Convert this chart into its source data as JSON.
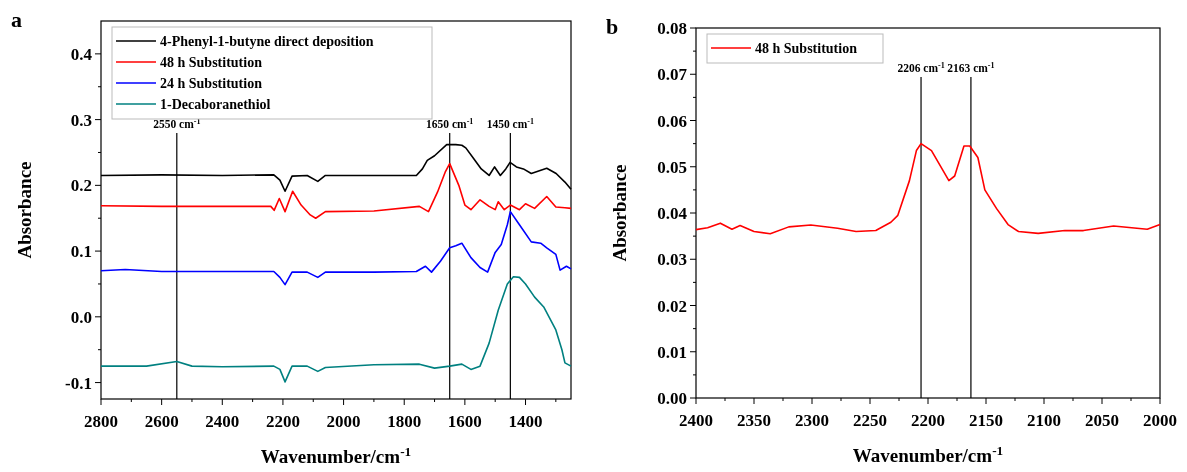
{
  "chart_data": [
    {
      "type": "line",
      "title": "a",
      "xlabel": "Wavenumber/cm$^{-1}$",
      "ylabel": "Absorbance",
      "xlim": [
        2800,
        1250
      ],
      "xticks": [
        2800,
        {
          "value": 2700,
          "label": null
        },
        2600,
        {
          "value": 2500,
          "label": null
        },
        2400,
        {
          "value": 2300,
          "label": null
        },
        2200,
        {
          "value": 2100,
          "label": null
        },
        2000,
        {
          "value": 1900,
          "label": null
        },
        1800,
        {
          "value": 1700,
          "label": null
        },
        1600,
        {
          "value": 1500,
          "label": null
        },
        1400,
        {
          "value": 1300,
          "label": null
        }
      ],
      "ylim": [
        -0.125,
        0.45
      ],
      "yticks": [
        {
          "value": -0.1,
          "label": "-0.1"
        },
        {
          "value": -0.05,
          "label": null
        },
        {
          "value": 0,
          "label": "0.0"
        },
        {
          "value": 0.05,
          "label": null
        },
        0.1,
        {
          "value": 0.15,
          "label": null
        },
        0.2,
        {
          "value": 0.25,
          "label": null
        },
        0.3,
        {
          "value": 0.35,
          "label": null
        },
        0.4
      ],
      "legend": "top left",
      "grid": false,
      "marker": "none",
      "line_style": "solid",
      "series": [
        {
          "name": "4-Phenyl-1-butyne direct deposition",
          "color": "#000000",
          "x": [
            2800,
            2600,
            2400,
            2230,
            2210,
            2193,
            2170,
            2120,
            2085,
            2060,
            1900,
            1760,
            1740,
            1724,
            1700,
            1660,
            1630,
            1610,
            1597,
            1570,
            1546,
            1520,
            1502,
            1483,
            1465,
            1451,
            1430,
            1407,
            1381,
            1330,
            1299,
            1270,
            1250
          ],
          "values": [
            0.215,
            0.216,
            0.215,
            0.216,
            0.208,
            0.191,
            0.214,
            0.215,
            0.206,
            0.215,
            0.215,
            0.215,
            0.225,
            0.238,
            0.245,
            0.262,
            0.262,
            0.261,
            0.257,
            0.24,
            0.225,
            0.215,
            0.228,
            0.215,
            0.225,
            0.235,
            0.228,
            0.225,
            0.218,
            0.226,
            0.218,
            0.205,
            0.194
          ]
        },
        {
          "name": "48 h Substitution",
          "color": "#ff0000",
          "x": [
            2800,
            2600,
            2400,
            2240,
            2229,
            2212,
            2193,
            2168,
            2140,
            2110,
            2092,
            2060,
            1900,
            1750,
            1720,
            1690,
            1665,
            1650,
            1620,
            1600,
            1580,
            1550,
            1520,
            1500,
            1490,
            1470,
            1450,
            1420,
            1400,
            1370,
            1330,
            1300,
            1270,
            1250
          ],
          "values": [
            0.169,
            0.168,
            0.168,
            0.168,
            0.162,
            0.18,
            0.16,
            0.191,
            0.17,
            0.155,
            0.15,
            0.16,
            0.161,
            0.168,
            0.16,
            0.19,
            0.22,
            0.233,
            0.2,
            0.17,
            0.163,
            0.178,
            0.168,
            0.163,
            0.175,
            0.163,
            0.17,
            0.163,
            0.172,
            0.165,
            0.183,
            0.167,
            0.166,
            0.165
          ]
        },
        {
          "name": "24 h Substitution",
          "color": "#0000ff",
          "x": [
            2800,
            2720,
            2600,
            2400,
            2230,
            2210,
            2193,
            2170,
            2120,
            2085,
            2060,
            1900,
            1760,
            1730,
            1710,
            1680,
            1650,
            1630,
            1610,
            1580,
            1550,
            1525,
            1500,
            1480,
            1460,
            1450,
            1420,
            1381,
            1350,
            1330,
            1300,
            1286,
            1265,
            1250
          ],
          "values": [
            0.07,
            0.072,
            0.069,
            0.069,
            0.069,
            0.06,
            0.049,
            0.068,
            0.068,
            0.06,
            0.068,
            0.068,
            0.069,
            0.077,
            0.068,
            0.085,
            0.105,
            0.108,
            0.112,
            0.09,
            0.075,
            0.068,
            0.098,
            0.11,
            0.14,
            0.16,
            0.14,
            0.114,
            0.112,
            0.105,
            0.095,
            0.071,
            0.077,
            0.073
          ]
        },
        {
          "name": "1-Decaboranethiol",
          "color": "#008080",
          "x": [
            2800,
            2650,
            2550,
            2500,
            2400,
            2230,
            2210,
            2193,
            2170,
            2120,
            2085,
            2060,
            1900,
            1750,
            1700,
            1650,
            1610,
            1580,
            1550,
            1520,
            1490,
            1460,
            1440,
            1420,
            1400,
            1370,
            1340,
            1300,
            1280,
            1270,
            1250
          ],
          "values": [
            -0.075,
            -0.075,
            -0.068,
            -0.075,
            -0.076,
            -0.075,
            -0.08,
            -0.099,
            -0.075,
            -0.075,
            -0.083,
            -0.077,
            -0.073,
            -0.072,
            -0.078,
            -0.075,
            -0.072,
            -0.08,
            -0.075,
            -0.04,
            0.01,
            0.05,
            0.061,
            0.06,
            0.05,
            0.03,
            0.015,
            -0.02,
            -0.05,
            -0.07,
            -0.075
          ]
        }
      ],
      "ref_lines": [
        {
          "axis": "x",
          "value": 1650,
          "label": "1650 cm$^{-1}$",
          "color": "#000000"
        },
        {
          "axis": "x",
          "value": 1450,
          "label": "1450 cm$^{-1}$",
          "color": "#000000"
        },
        {
          "axis": "x",
          "value": 2550,
          "label": "2550 cm$^{-1}$",
          "color": "#000000"
        }
      ]
    },
    {
      "type": "line",
      "title": "b",
      "xlabel": "Wavenumber/cm$^{-1}$",
      "ylabel": "Absorbance",
      "xlim": [
        2400,
        2000
      ],
      "xticks": [
        2400,
        {
          "value": 2375,
          "label": null
        },
        2350,
        {
          "value": 2325,
          "label": null
        },
        2300,
        {
          "value": 2275,
          "label": null
        },
        2250,
        {
          "value": 2225,
          "label": null
        },
        2200,
        {
          "value": 2175,
          "label": null
        },
        2150,
        {
          "value": 2125,
          "label": null
        },
        2100,
        {
          "value": 2075,
          "label": null
        },
        2050,
        {
          "value": 2025,
          "label": null
        },
        2000
      ],
      "ylim": [
        0,
        0.08
      ],
      "yticks": [
        {
          "value": 0,
          "label": "0.00"
        },
        {
          "value": 0.005,
          "label": null
        },
        {
          "value": 0.01,
          "label": "0.01"
        },
        {
          "value": 0.015,
          "label": null
        },
        {
          "value": 0.02,
          "label": "0.02"
        },
        {
          "value": 0.025,
          "label": null
        },
        {
          "value": 0.03,
          "label": "0.03"
        },
        {
          "value": 0.035,
          "label": null
        },
        {
          "value": 0.04,
          "label": "0.04"
        },
        {
          "value": 0.045,
          "label": null
        },
        {
          "value": 0.05,
          "label": "0.05"
        },
        {
          "value": 0.055,
          "label": null
        },
        {
          "value": 0.06,
          "label": "0.06"
        },
        {
          "value": 0.065,
          "label": null
        },
        {
          "value": 0.07,
          "label": "0.07"
        },
        {
          "value": 0.075,
          "label": null
        },
        {
          "value": 0.08,
          "label": "0.08"
        }
      ],
      "legend": "top left",
      "grid": false,
      "marker": "none",
      "line_style": "solid",
      "series": [
        {
          "name": "48 h Substitution",
          "color": "#ff0000",
          "x": [
            2400,
            2390,
            2379,
            2369,
            2362,
            2350,
            2336,
            2320,
            2301,
            2278,
            2262,
            2245,
            2232,
            2226,
            2216,
            2210,
            2206,
            2197,
            2182,
            2177,
            2169,
            2164,
            2157,
            2151,
            2141,
            2131,
            2122,
            2105,
            2082,
            2066,
            2040,
            2011,
            2000
          ],
          "values": [
            0.0364,
            0.0368,
            0.0378,
            0.0365,
            0.0373,
            0.036,
            0.0355,
            0.037,
            0.0374,
            0.0367,
            0.036,
            0.0362,
            0.038,
            0.0395,
            0.047,
            0.0535,
            0.055,
            0.0535,
            0.047,
            0.048,
            0.0545,
            0.0545,
            0.052,
            0.045,
            0.041,
            0.0375,
            0.036,
            0.0356,
            0.0362,
            0.0362,
            0.0372,
            0.0365,
            0.0375
          ]
        }
      ],
      "ref_lines": [
        {
          "axis": "x",
          "value": 2206,
          "label": "2206 cm$^{-1}$",
          "color": "#000000"
        },
        {
          "axis": "x",
          "value": 2163,
          "label": "2163 cm$^{-1}$",
          "color": "#000000"
        }
      ]
    }
  ]
}
